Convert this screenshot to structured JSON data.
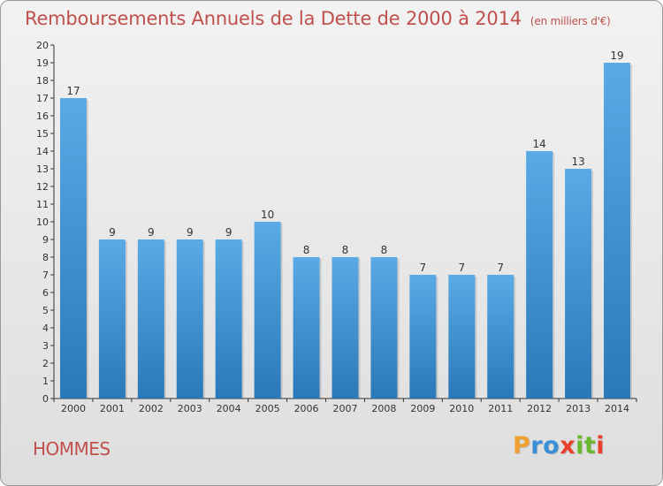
{
  "title": "Remboursements Annuels de la Dette de 2000 à 2014",
  "subtitle": "(en milliers d'€)",
  "commune": "HOMMES",
  "logo": {
    "letters": [
      "P",
      "r",
      "o",
      "x",
      "i",
      "t",
      "i"
    ],
    "colors": [
      "#f0a030",
      "#3a8fd8",
      "#3a8fd8",
      "#e8402a",
      "#6ab82e",
      "#6ab82e",
      "#e8402a"
    ]
  },
  "colors": {
    "bar_top": "#5aaae6",
    "bar_bottom": "#2a78b8",
    "title": "#c0504d"
  },
  "chart_data": {
    "type": "bar",
    "categories": [
      "2000",
      "2001",
      "2002",
      "2003",
      "2004",
      "2005",
      "2006",
      "2007",
      "2008",
      "2009",
      "2010",
      "2011",
      "2012",
      "2013",
      "2014"
    ],
    "values": [
      17,
      9,
      9,
      9,
      9,
      10,
      8,
      8,
      8,
      7,
      7,
      7,
      14,
      13,
      19
    ],
    "yticks": [
      0,
      1,
      2,
      3,
      4,
      5,
      6,
      7,
      8,
      9,
      10,
      11,
      12,
      13,
      14,
      15,
      16,
      17,
      18,
      19,
      20
    ],
    "ylim": [
      0,
      20
    ],
    "grid": false
  }
}
